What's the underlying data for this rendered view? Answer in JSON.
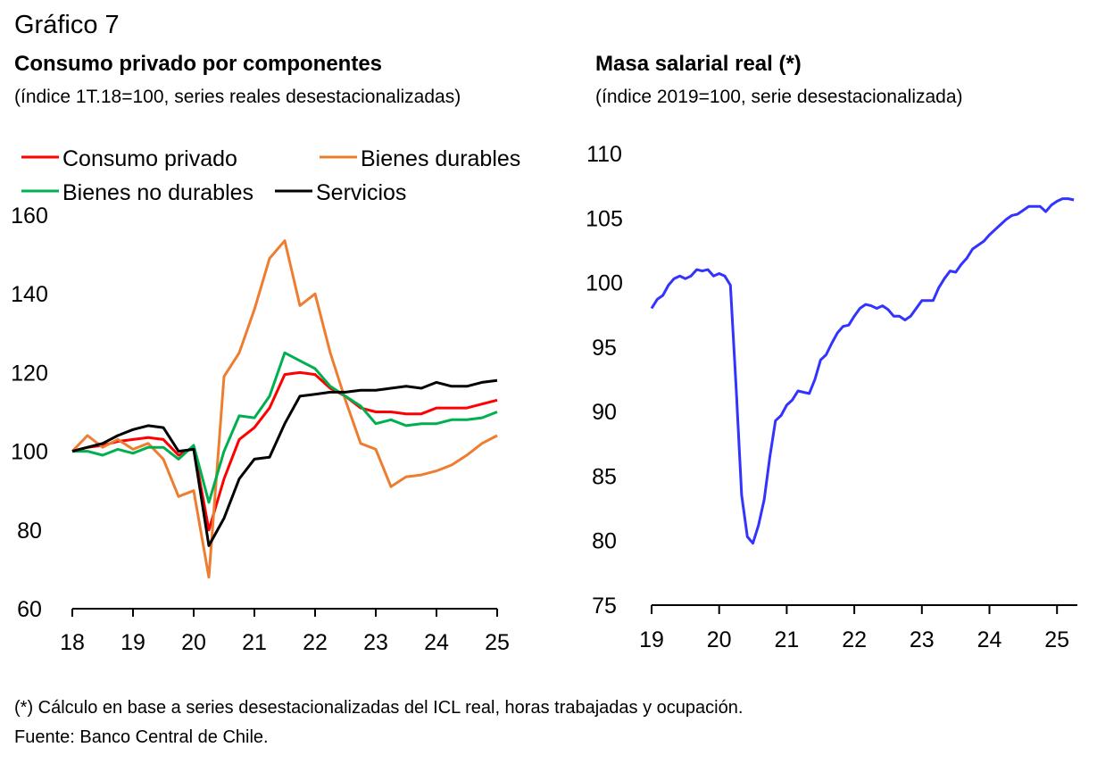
{
  "figure": {
    "label": "Gráfico 7",
    "note": "(*) Cálculo en base a series desestacionalizadas del ICL real, horas trabajadas y ocupación.",
    "source": "Fuente: Banco Central de Chile."
  },
  "chart_data": [
    {
      "type": "line",
      "title": "Consumo privado por componentes",
      "subtitle": "(índice 1T.18=100, series reales desestacionalizadas)",
      "xlabel": "",
      "ylabel": "",
      "xlim": [
        18,
        25
      ],
      "ylim": [
        60,
        160
      ],
      "yticks": [
        60,
        80,
        100,
        120,
        140,
        160
      ],
      "xticks": [
        "18",
        "19",
        "20",
        "21",
        "22",
        "23",
        "24",
        "25"
      ],
      "grid": false,
      "legend_position": "top-left",
      "x": [
        18.0,
        18.25,
        18.5,
        18.75,
        19.0,
        19.25,
        19.5,
        19.75,
        20.0,
        20.25,
        20.5,
        20.75,
        21.0,
        21.25,
        21.5,
        21.75,
        22.0,
        22.25,
        22.5,
        22.75,
        23.0,
        23.25,
        23.5,
        23.75,
        24.0,
        24.25,
        24.5,
        24.75,
        25.0
      ],
      "series": [
        {
          "name": "Consumo privado",
          "color": "#ff0000",
          "values": [
            100,
            101,
            101.5,
            102.5,
            103,
            103.5,
            103,
            99,
            101,
            80,
            93,
            103,
            106,
            111,
            119.5,
            120,
            119.5,
            116,
            114,
            111,
            110,
            110,
            109.5,
            109.5,
            111,
            111,
            111,
            112,
            113
          ]
        },
        {
          "name": "Bienes durables",
          "color": "#ed7d31",
          "values": [
            100,
            104,
            101,
            103,
            100.5,
            102,
            98,
            88.5,
            90,
            68,
            119,
            125,
            136,
            149,
            153.5,
            137,
            140,
            125,
            113,
            102,
            100.5,
            91,
            93.5,
            94,
            95,
            96.5,
            99,
            102,
            104
          ]
        },
        {
          "name": "Bienes no durables",
          "color": "#00b050",
          "values": [
            100,
            100,
            99,
            100.5,
            99.5,
            101,
            101,
            98,
            101.5,
            87,
            100,
            109,
            108.5,
            114,
            125,
            123,
            121,
            116.5,
            114,
            111.5,
            107,
            108,
            106.5,
            107,
            107,
            108,
            108,
            108.5,
            110
          ]
        },
        {
          "name": "Servicios",
          "color": "#000000",
          "values": [
            100,
            101,
            102,
            104,
            105.5,
            106.5,
            106,
            100,
            100.5,
            76,
            83,
            93,
            98,
            98.5,
            107,
            114,
            114.5,
            115,
            115,
            115.5,
            115.5,
            116,
            116.5,
            116,
            117.5,
            116.5,
            116.5,
            117.5,
            118
          ]
        }
      ]
    },
    {
      "type": "line",
      "title": "Masa salarial real (*)",
      "subtitle": "(índice 2019=100, serie desestacionalizada)",
      "xlabel": "",
      "ylabel": "",
      "xlim": [
        19,
        25.33
      ],
      "ylim": [
        75,
        110
      ],
      "yticks": [
        75,
        80,
        85,
        90,
        95,
        100,
        105,
        110
      ],
      "xticks": [
        "19",
        "20",
        "21",
        "22",
        "23",
        "24",
        "25"
      ],
      "grid": false,
      "series": [
        {
          "name": "",
          "color": "#3333ff",
          "x": [
            19.0,
            19.083,
            19.167,
            19.25,
            19.333,
            19.417,
            19.5,
            19.583,
            19.667,
            19.75,
            19.833,
            19.917,
            20.0,
            20.083,
            20.167,
            20.25,
            20.333,
            20.417,
            20.5,
            20.583,
            20.667,
            20.75,
            20.833,
            20.917,
            21.0,
            21.083,
            21.167,
            21.25,
            21.333,
            21.417,
            21.5,
            21.583,
            21.667,
            21.75,
            21.833,
            21.917,
            22.0,
            22.083,
            22.167,
            22.25,
            22.333,
            22.417,
            22.5,
            22.583,
            22.667,
            22.75,
            22.833,
            22.917,
            23.0,
            23.083,
            23.167,
            23.25,
            23.333,
            23.417,
            23.5,
            23.583,
            23.667,
            23.75,
            23.833,
            23.917,
            24.0,
            24.083,
            24.167,
            24.25,
            24.333,
            24.417,
            24.5,
            24.583,
            24.667,
            24.75,
            24.833,
            24.917,
            25.0,
            25.083,
            25.167,
            25.25
          ],
          "values": [
            98.0,
            98.7,
            99.0,
            99.8,
            100.3,
            100.5,
            100.3,
            100.5,
            101.0,
            100.9,
            101.0,
            100.5,
            100.7,
            100.5,
            99.8,
            92.0,
            83.5,
            80.3,
            79.8,
            81.2,
            83.2,
            86.5,
            89.3,
            89.7,
            90.5,
            90.9,
            91.6,
            91.5,
            91.4,
            92.5,
            94.0,
            94.4,
            95.3,
            96.1,
            96.6,
            96.7,
            97.4,
            98.0,
            98.3,
            98.2,
            98.0,
            98.2,
            97.9,
            97.4,
            97.4,
            97.1,
            97.4,
            98.0,
            98.6,
            98.6,
            98.6,
            99.6,
            100.3,
            100.9,
            100.8,
            101.4,
            101.9,
            102.6,
            102.9,
            103.2,
            103.7,
            104.1,
            104.5,
            104.9,
            105.2,
            105.3,
            105.6,
            105.9,
            105.9,
            105.9,
            105.5,
            106.0,
            106.3,
            106.5,
            106.5,
            106.4
          ]
        }
      ]
    }
  ]
}
